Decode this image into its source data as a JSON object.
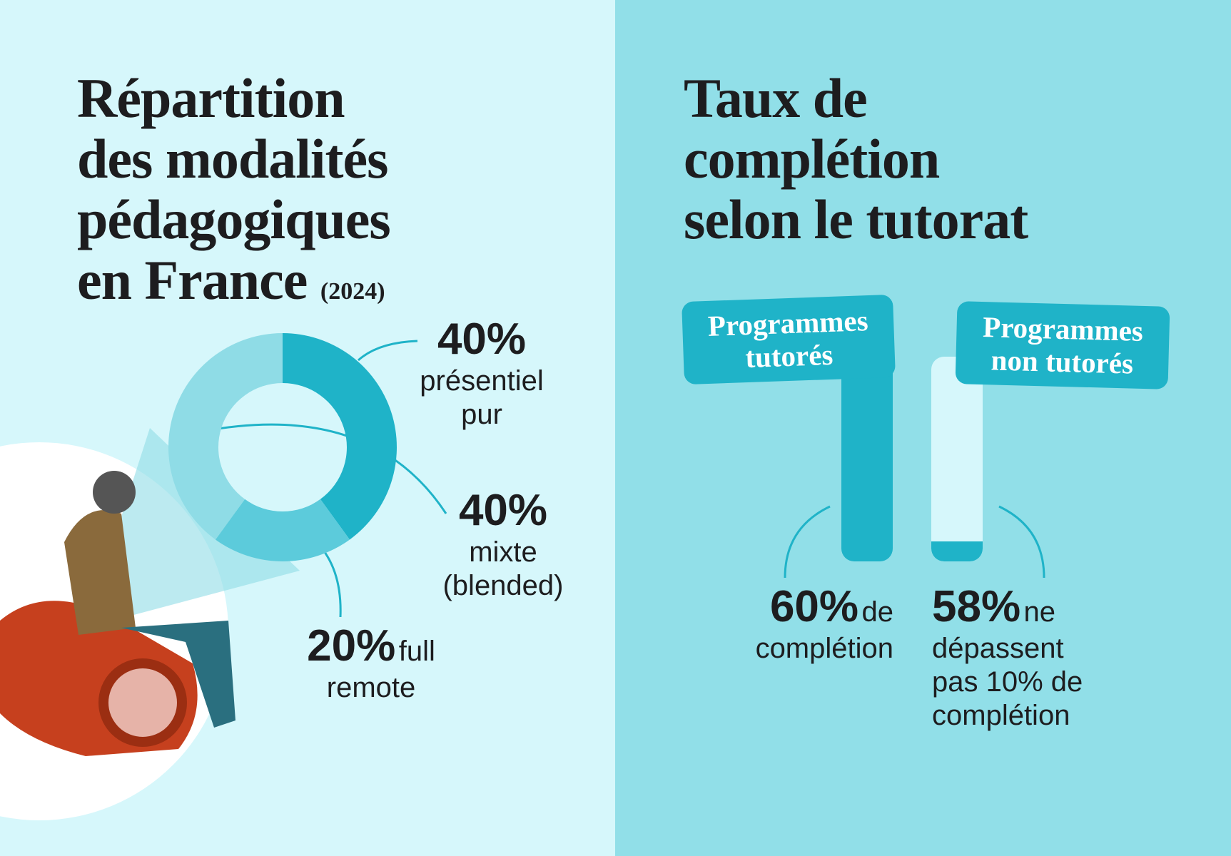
{
  "chart_data": [
    {
      "type": "donut",
      "title": "Répartition\ndes modalités\npédagogiques\nen France",
      "subtitle": "(2024)",
      "categories": [
        "présentiel pur",
        "full remote",
        "mixte (blended)"
      ],
      "values": [
        40,
        20,
        40
      ],
      "value_labels": [
        "40%",
        "20%",
        "40%"
      ],
      "colors": [
        "#1fb3c8",
        "#5ccbdb",
        "#8fdce6"
      ]
    },
    {
      "type": "completion",
      "title": "Taux de\ncomplétion\nselon le tutorat",
      "categories": [
        "Programmes tutorés",
        "Programmes non tutorés"
      ],
      "values": [
        60,
        58
      ],
      "value_labels": [
        "60%",
        "58%"
      ],
      "descriptions": [
        "de complétion",
        "ne dépassent pas 10% de complétion"
      ],
      "colors": [
        "#1fb3c8",
        "#1fb3c8"
      ]
    }
  ]
}
